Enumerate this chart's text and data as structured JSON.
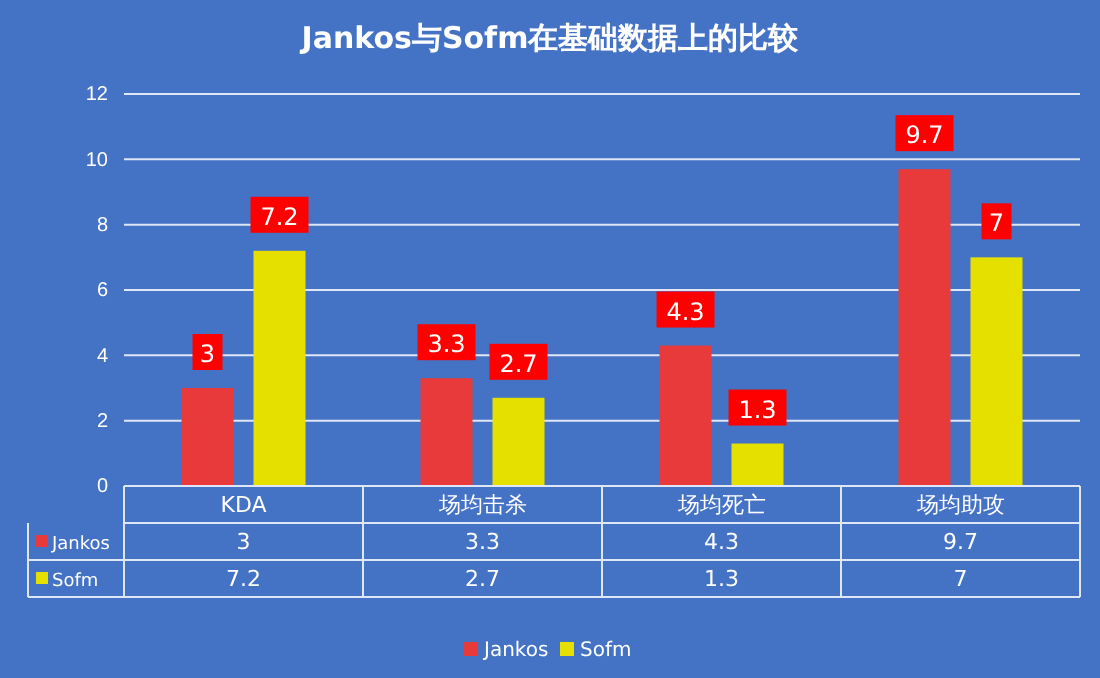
{
  "chart_data": {
    "type": "bar",
    "title": "Jankos与Sofm在基础数据上的比较",
    "categories": [
      "KDA",
      "场均击杀",
      "场均死亡",
      "场均助攻"
    ],
    "series": [
      {
        "name": "Jankos",
        "color": "#e83a3a",
        "values": [
          3,
          3.3,
          4.3,
          9.7
        ],
        "value_labels": [
          "3",
          "3.3",
          "4.3",
          "9.7"
        ]
      },
      {
        "name": "Sofm",
        "color": "#e6e000",
        "values": [
          7.2,
          2.7,
          1.3,
          7
        ],
        "value_labels": [
          "7.2",
          "2.7",
          "1.3",
          "7"
        ]
      }
    ],
    "annotations": [
      "3",
      "3.3",
      "4.3",
      "9.7",
      "7.2",
      "2.7",
      "1.3",
      "7"
    ],
    "ylim": [
      0,
      12
    ],
    "yticks": [
      0,
      2,
      4,
      6,
      8,
      10,
      12
    ],
    "grid": "y",
    "legend": "bottom"
  }
}
